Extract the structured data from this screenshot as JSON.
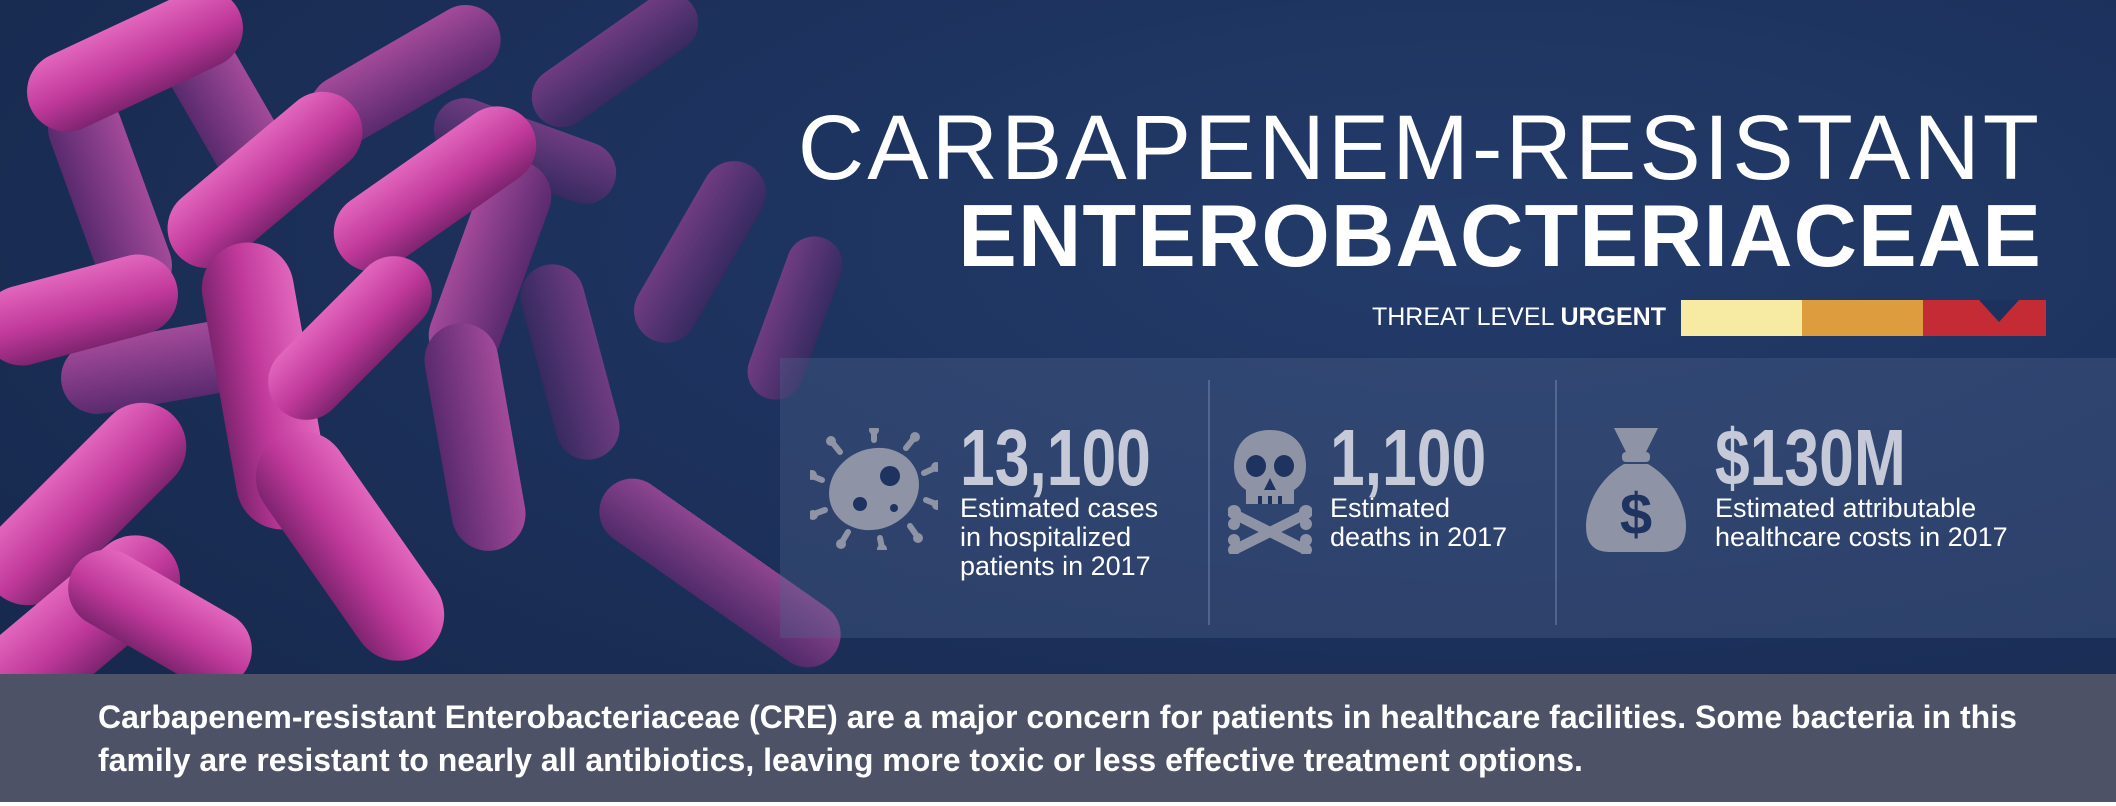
{
  "title": {
    "line1": "CARBAPENEM-RESISTANT",
    "line2": "ENTEROBACTERIACEAE"
  },
  "threat": {
    "label": "THREAT LEVEL",
    "level": "URGENT",
    "colors": [
      "#f7eba4",
      "#dd9d3e",
      "#c42b35"
    ]
  },
  "stats": [
    {
      "icon": "germ-icon",
      "number": "13,100",
      "desc": "Estimated cases\nin hospitalized\npatients in 2017"
    },
    {
      "icon": "skull-crossbones-icon",
      "number": "1,100",
      "desc": "Estimated\ndeaths in 2017"
    },
    {
      "icon": "money-bag-icon",
      "number": "$130M",
      "desc": "Estimated attributable\nhealthcare costs in 2017"
    }
  ],
  "caption": "Carbapenem-resistant Enterobacteriaceae (CRE) are a major concern for patients in healthcare facilities. Some bacteria in this family are resistant to nearly all antibiotics, leaving more toxic or less effective treatment options.",
  "colors": {
    "background": "#1c315c",
    "icon": "#8e93a6",
    "number": "#c6cad8",
    "bacteria": "#c43c9a",
    "caption_band": "#4d5266"
  },
  "illustration": "magenta-rod-bacteria-image"
}
